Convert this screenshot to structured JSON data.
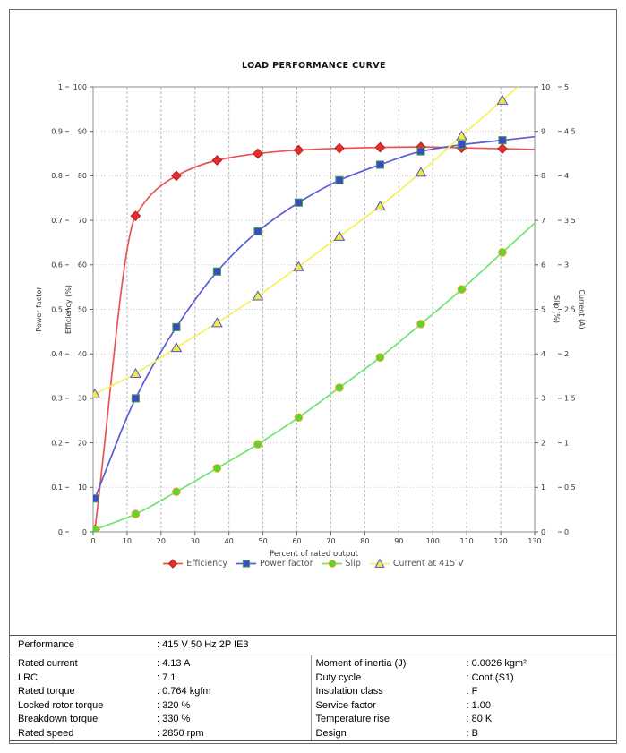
{
  "chart_data": {
    "type": "line",
    "title": "LOAD PERFORMANCE CURVE",
    "x": [
      0.5,
      12.5,
      24.5,
      36.5,
      48.5,
      60.5,
      72.5,
      84.5,
      96.5,
      108.5,
      120.5
    ],
    "axes": {
      "x": {
        "label": "Percent of rated output",
        "min": 0,
        "max": 130,
        "step": 10
      },
      "power_factor": {
        "label": "Power factor",
        "min": 0,
        "max": 1,
        "step": 0.1
      },
      "efficiency": {
        "label": "Efficiency (%)",
        "min": 0,
        "max": 100,
        "step": 10
      },
      "slip": {
        "label": "Slip (%)",
        "min": 0,
        "max": 10,
        "step": 1
      },
      "current": {
        "label": "Current (A)",
        "min": 0,
        "max": 5,
        "step": 0.5
      }
    },
    "series": [
      {
        "name": "Efficiency",
        "axis": "efficiency",
        "marker": "diamond",
        "line_color": "#e85552",
        "marker_fill": "#e3302c",
        "marker_stroke": "#b81f1f",
        "values": [
          0.5,
          71,
          80,
          83.5,
          85,
          85.8,
          86.2,
          86.4,
          86.5,
          86.3,
          86.1
        ]
      },
      {
        "name": "Power factor",
        "axis": "power_factor",
        "marker": "square",
        "line_color": "#5b5bd6",
        "marker_fill": "#3a49c8",
        "marker_stroke": "#43a047",
        "values": [
          0.075,
          0.3,
          0.46,
          0.585,
          0.675,
          0.74,
          0.79,
          0.825,
          0.855,
          0.87,
          0.88
        ]
      },
      {
        "name": "Slip",
        "axis": "slip",
        "marker": "circle",
        "line_color": "#6fe56f",
        "marker_fill": "#58d632",
        "marker_stroke": "#efa020",
        "values": [
          0.05,
          0.4,
          0.9,
          1.43,
          1.97,
          2.57,
          3.24,
          3.92,
          4.67,
          5.45,
          6.28
        ]
      },
      {
        "name": "Current at 415 V",
        "axis": "current",
        "marker": "triangle",
        "line_color": "#f7ef5e",
        "marker_fill": "#f3ea44",
        "marker_stroke": "#5353cc",
        "values": [
          1.55,
          1.78,
          2.07,
          2.35,
          2.65,
          2.98,
          3.32,
          3.66,
          4.04,
          4.45,
          4.85
        ]
      }
    ],
    "legend_position": "bottom-center",
    "grid": true
  },
  "table": {
    "header": {
      "label": "Performance",
      "value": ": 415 V 50 Hz 2P IE3"
    },
    "left_rows": [
      {
        "label": "Rated current",
        "value": ": 4.13 A"
      },
      {
        "label": "LRC",
        "value": ": 7.1"
      },
      {
        "label": "Rated torque",
        "value": ": 0.764 kgfm"
      },
      {
        "label": "Locked rotor torque",
        "value": ": 320 %"
      },
      {
        "label": "Breakdown torque",
        "value": ": 330 %"
      },
      {
        "label": "Rated speed",
        "value": ": 2850 rpm"
      }
    ],
    "right_rows": [
      {
        "label": "Moment of inertia (J)",
        "value": ": 0.0026 kgm²"
      },
      {
        "label": "Duty cycle",
        "value": ": Cont.(S1)"
      },
      {
        "label": "Insulation class",
        "value": ": F"
      },
      {
        "label": "Service factor",
        "value": ": 1.00"
      },
      {
        "label": "Temperature rise",
        "value": ": 80 K"
      },
      {
        "label": "Design",
        "value": ": B"
      }
    ]
  }
}
